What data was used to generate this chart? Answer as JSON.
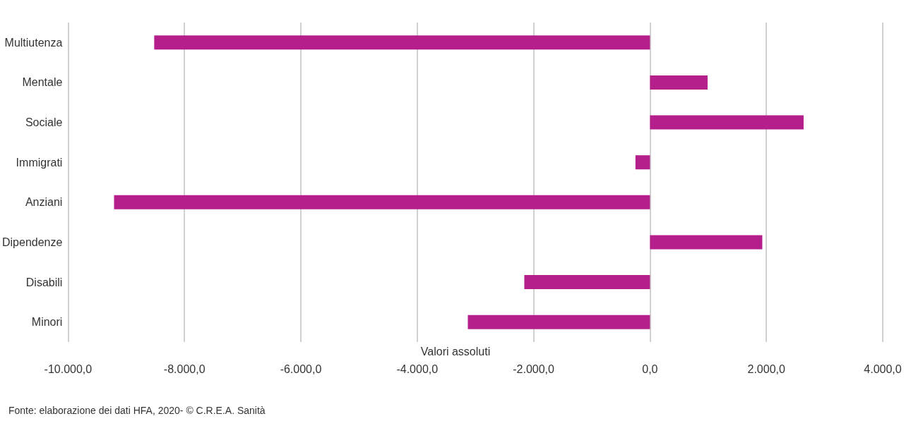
{
  "chart_data": {
    "type": "bar",
    "orientation": "horizontal",
    "xlabel": "Valori assoluti",
    "categories": [
      "Multiutenza",
      "Mentale",
      "Sociale",
      "Immigrati",
      "Anziani",
      "Dipendenze",
      "Disabili",
      "Minori"
    ],
    "values": [
      -8520,
      990,
      2640,
      -250,
      -9210,
      1930,
      -2160,
      -3130
    ],
    "color": "#b41f8b",
    "xlim": [
      -10000,
      4000
    ],
    "xticks": [
      {
        "value": -10000,
        "label": "-10.000,0"
      },
      {
        "value": -8000,
        "label": "-8.000,0"
      },
      {
        "value": -6000,
        "label": "-6.000,0"
      },
      {
        "value": -4000,
        "label": "-4.000,0"
      },
      {
        "value": -2000,
        "label": "-2.000,0"
      },
      {
        "value": 0,
        "label": "0,0"
      },
      {
        "value": 2000,
        "label": "2.000,0"
      },
      {
        "value": 4000,
        "label": "4.000,0"
      }
    ],
    "grid": "x",
    "annotations": [
      "Fonte: elaborazione dei dati HFA, 2020- © C.R.E.A. Sanità"
    ]
  }
}
